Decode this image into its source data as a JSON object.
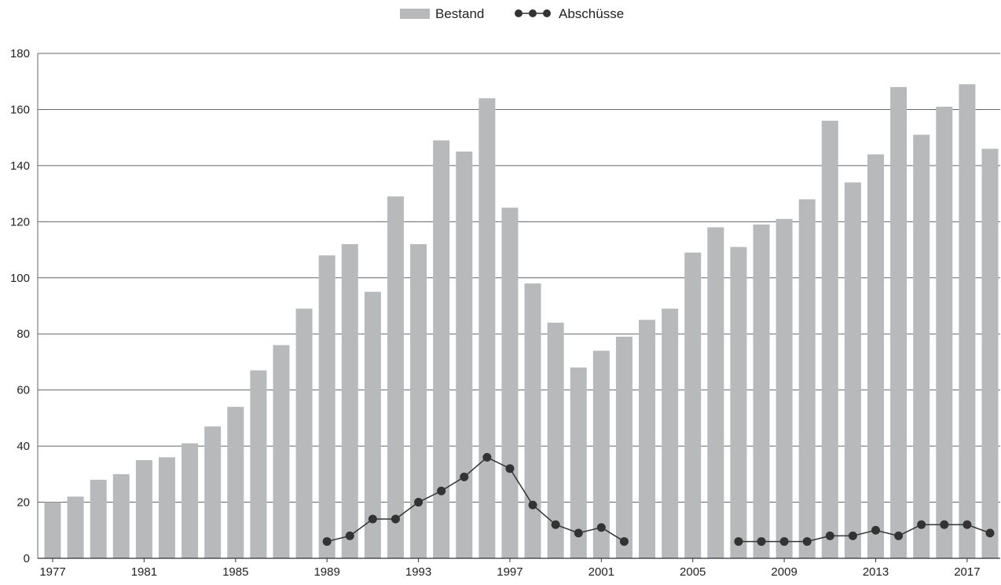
{
  "chart_data": {
    "type": "bar",
    "title": "",
    "xlabel": "",
    "ylabel": "",
    "ylim": [
      0,
      180
    ],
    "yticks": [
      0,
      20,
      40,
      60,
      80,
      100,
      120,
      140,
      160,
      180
    ],
    "xtick_labels": [
      "1977",
      "1981",
      "1985",
      "1989",
      "1993",
      "1997",
      "2001",
      "2005",
      "2009",
      "2013",
      "2017"
    ],
    "grid": "horizontal",
    "legend_position": "top-center",
    "categories": [
      1977,
      1978,
      1979,
      1980,
      1981,
      1982,
      1983,
      1984,
      1985,
      1986,
      1987,
      1988,
      1989,
      1990,
      1991,
      1992,
      1993,
      1994,
      1995,
      1996,
      1997,
      1998,
      1999,
      2000,
      2001,
      2002,
      2003,
      2004,
      2005,
      2006,
      2007,
      2008,
      2009,
      2010,
      2011,
      2012,
      2013,
      2014,
      2015,
      2016,
      2017,
      2018
    ],
    "series": [
      {
        "name": "Bestand",
        "type": "bar",
        "color": "#b7b9bb",
        "values": [
          20,
          22,
          28,
          30,
          35,
          36,
          41,
          47,
          54,
          67,
          76,
          89,
          108,
          112,
          95,
          129,
          112,
          149,
          145,
          164,
          125,
          98,
          84,
          68,
          74,
          79,
          85,
          89,
          109,
          118,
          111,
          119,
          121,
          128,
          156,
          134,
          144,
          168,
          151,
          161,
          169,
          146
        ]
      },
      {
        "name": "Abschüsse",
        "type": "line",
        "color": "#333333",
        "values": [
          null,
          null,
          null,
          null,
          null,
          null,
          null,
          null,
          null,
          null,
          null,
          null,
          6,
          8,
          14,
          14,
          20,
          24,
          29,
          36,
          32,
          19,
          12,
          9,
          11,
          6,
          null,
          null,
          null,
          null,
          6,
          6,
          6,
          6,
          8,
          8,
          10,
          8,
          12,
          12,
          12,
          9
        ]
      }
    ]
  }
}
